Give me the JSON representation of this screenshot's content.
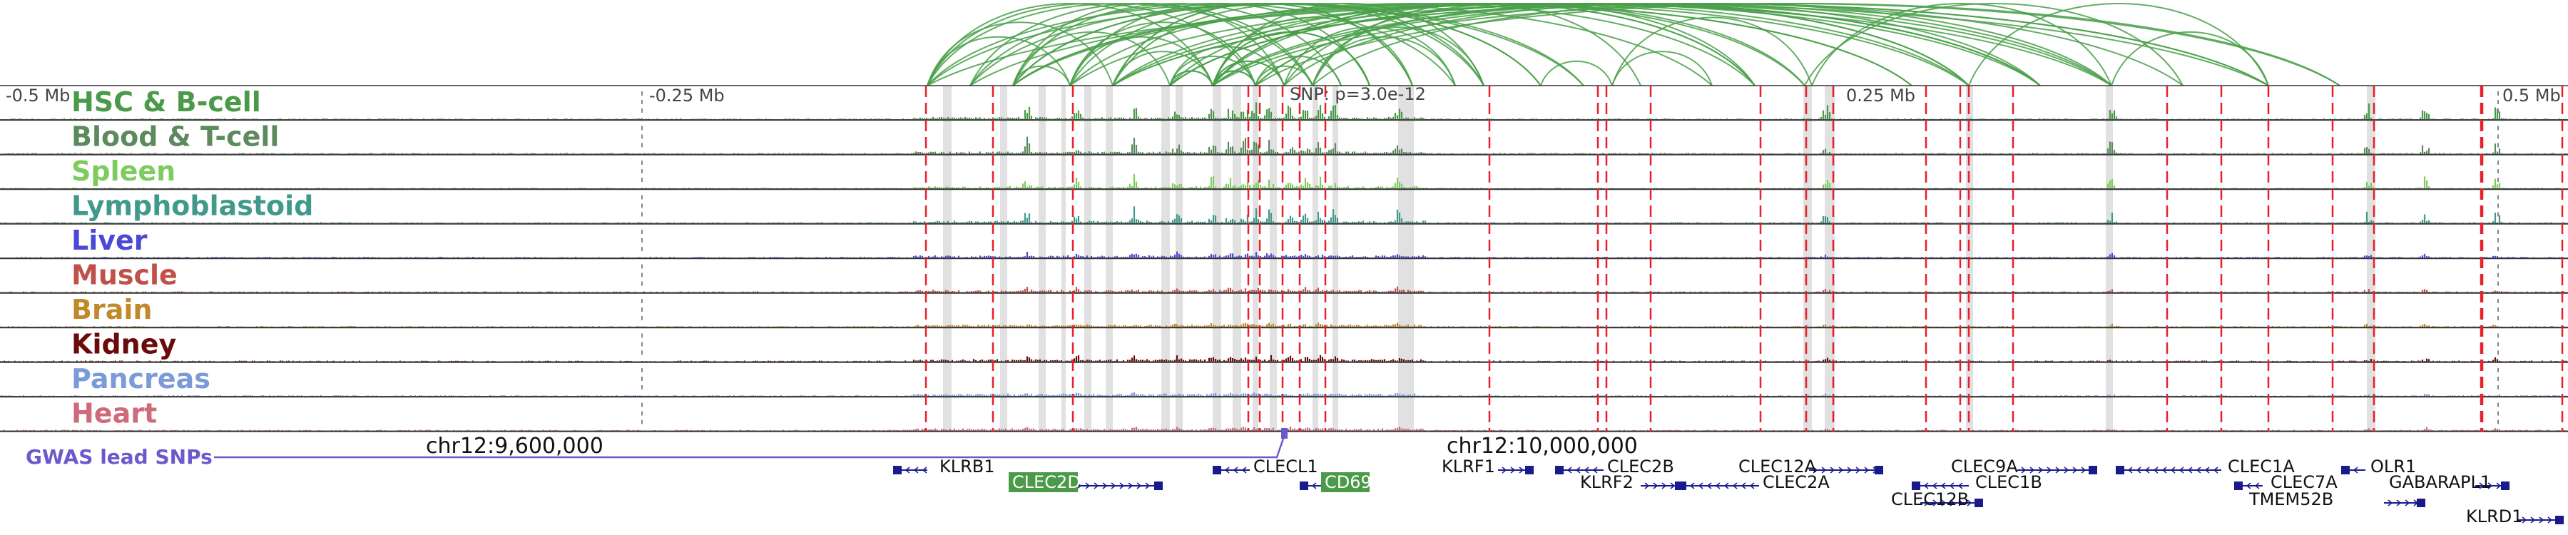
{
  "colors": {
    "arc": "#4aa04a",
    "highlight": "#dcdcdc",
    "snp_line": "#e8202a",
    "gwas": "#6a5acd",
    "gene": "#1a1a8c",
    "gene_highlight_bg": "#4a9a4a",
    "axis": "#444444",
    "track_border": "#333333"
  },
  "scale": {
    "left_label": "-0.5 Mb",
    "mid_left_label": "-0.25 Mb",
    "mid_right_label": "0.25 Mb",
    "right_label": "0.5 Mb",
    "snp_label": "SNP: p=3.0e-12"
  },
  "tracks": [
    {
      "name": "HSC & B-cell",
      "color": "#4a9a4a",
      "icon": "signal-track",
      "level": 1.0
    },
    {
      "name": "Blood & T-cell",
      "color": "#5c8a5c",
      "icon": "signal-track",
      "level": 0.9
    },
    {
      "name": "Spleen",
      "color": "#7ecb5e",
      "icon": "signal-track",
      "level": 0.75
    },
    {
      "name": "Lymphoblastoid",
      "color": "#3f9a8c",
      "icon": "signal-track",
      "level": 0.85
    },
    {
      "name": "Liver",
      "color": "#4a4ad8",
      "icon": "signal-track",
      "level": 0.25
    },
    {
      "name": "Muscle",
      "color": "#c0504a",
      "icon": "signal-track",
      "level": 0.25
    },
    {
      "name": "Brain",
      "color": "#c08a2a",
      "icon": "signal-track",
      "level": 0.2
    },
    {
      "name": "Kidney",
      "color": "#6a0a0a",
      "icon": "signal-track",
      "level": 0.3
    },
    {
      "name": "Pancreas",
      "color": "#7a9ad8",
      "icon": "signal-track",
      "level": 0.15
    },
    {
      "name": "Heart",
      "color": "#d06a7a",
      "icon": "signal-track",
      "level": 0.2
    }
  ],
  "gwas_label": "GWAS lead SNPs",
  "coords": {
    "left": "chr12:9,600,000",
    "right": "chr12:10,000,000"
  },
  "genes": [
    {
      "name": "KLRB1",
      "strand": "-",
      "highlight": false
    },
    {
      "name": "CLEC2D",
      "strand": "+",
      "highlight": true
    },
    {
      "name": "CLECL1",
      "strand": "-",
      "highlight": false
    },
    {
      "name": "CD69",
      "strand": "-",
      "highlight": true
    },
    {
      "name": "KLRF1",
      "strand": "+",
      "highlight": false
    },
    {
      "name": "CLEC2B",
      "strand": "-",
      "highlight": false
    },
    {
      "name": "KLRF2",
      "strand": "+",
      "highlight": false
    },
    {
      "name": "CLEC2A",
      "strand": "-",
      "highlight": false
    },
    {
      "name": "CLEC12A",
      "strand": "+",
      "highlight": false
    },
    {
      "name": "CLEC12B",
      "strand": "+",
      "highlight": false
    },
    {
      "name": "CLEC1B",
      "strand": "-",
      "highlight": false
    },
    {
      "name": "CLEC9A",
      "strand": "+",
      "highlight": false
    },
    {
      "name": "CLEC1A",
      "strand": "-",
      "highlight": false
    },
    {
      "name": "CLEC7A",
      "strand": "-",
      "highlight": false
    },
    {
      "name": "OLR1",
      "strand": "-",
      "highlight": false
    },
    {
      "name": "TMEM52B",
      "strand": "+",
      "highlight": false
    },
    {
      "name": "GABARAPL1",
      "strand": "+",
      "highlight": false
    },
    {
      "name": "KLRD1",
      "strand": "+",
      "highlight": false
    }
  ]
}
